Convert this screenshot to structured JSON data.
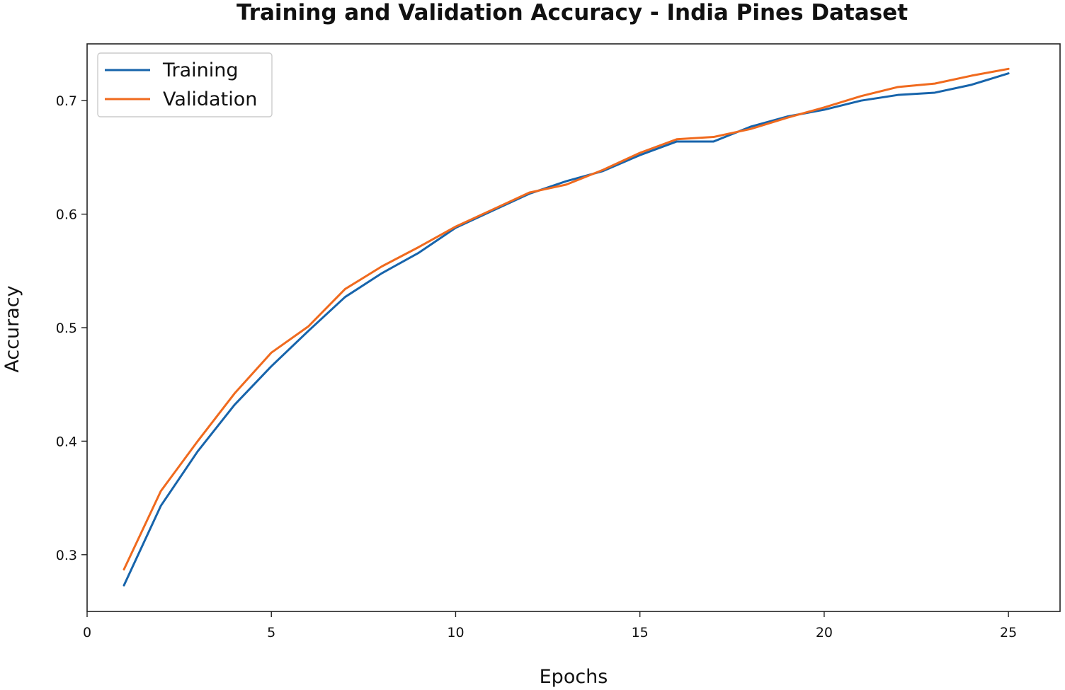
{
  "chart_data": {
    "type": "line",
    "title": "Training and Validation Accuracy - India Pines Dataset",
    "xlabel": "Epochs",
    "ylabel": "Accuracy",
    "xlim": [
      0,
      26.4
    ],
    "ylim": [
      0.25,
      0.75
    ],
    "xticks": [
      0,
      5,
      10,
      15,
      20,
      25
    ],
    "yticks": [
      0.3,
      0.4,
      0.5,
      0.6,
      0.7
    ],
    "xtick_labels": [
      "0",
      "5",
      "10",
      "15",
      "20",
      "25"
    ],
    "ytick_labels": [
      "0.3",
      "0.4",
      "0.5",
      "0.6",
      "0.7"
    ],
    "grid": false,
    "legend_position": "top-left",
    "x": [
      1,
      2,
      3,
      4,
      5,
      6,
      7,
      8,
      9,
      10,
      11,
      12,
      13,
      14,
      15,
      16,
      17,
      18,
      19,
      20,
      21,
      22,
      23,
      24,
      25
    ],
    "series": [
      {
        "name": "Training",
        "color": "#1764ab",
        "values": [
          0.273,
          0.343,
          0.391,
          0.432,
          0.466,
          0.497,
          0.527,
          0.548,
          0.566,
          0.588,
          0.603,
          0.618,
          0.629,
          0.638,
          0.652,
          0.664,
          0.664,
          0.677,
          0.686,
          0.692,
          0.7,
          0.705,
          0.707,
          0.714,
          0.724
        ]
      },
      {
        "name": "Validation",
        "color": "#f06a1e",
        "values": [
          0.287,
          0.356,
          0.4,
          0.442,
          0.478,
          0.501,
          0.534,
          0.554,
          0.571,
          0.589,
          0.604,
          0.619,
          0.626,
          0.639,
          0.654,
          0.666,
          0.668,
          0.675,
          0.685,
          0.694,
          0.704,
          0.712,
          0.715,
          0.722,
          0.728
        ]
      }
    ]
  }
}
